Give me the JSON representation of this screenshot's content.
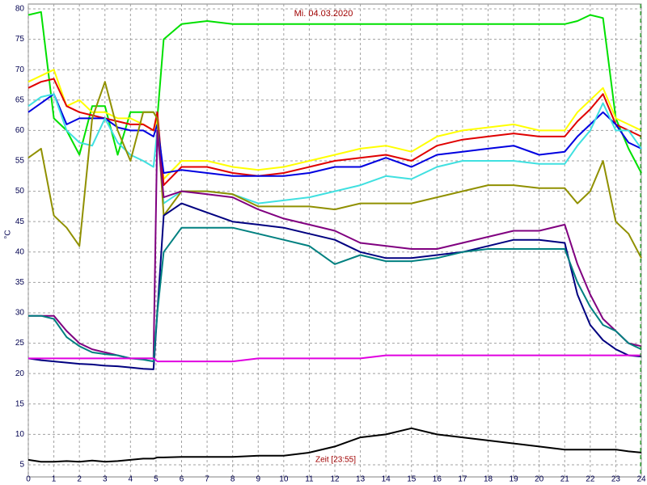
{
  "chart_data": {
    "type": "line",
    "title": "Mi. 04.03.2020",
    "ylabel": "°C",
    "annotation": "Zeit [23:55]",
    "x": [
      0,
      0.5,
      1,
      1.5,
      2,
      2.5,
      3,
      3.5,
      4,
      4.5,
      4.9,
      5.05,
      5.3,
      6,
      7,
      8,
      9,
      10,
      11,
      12,
      13,
      14,
      15,
      16,
      17,
      18,
      19,
      20,
      21,
      21.5,
      22,
      22.5,
      23,
      23.5,
      24
    ],
    "series": [
      {
        "color": "#00e000",
        "values": [
          79,
          79.5,
          62,
          60,
          56,
          64,
          64,
          56,
          63,
          63,
          63,
          62,
          75,
          77.5,
          78,
          77.5,
          77.5,
          77.5,
          77.5,
          77.5,
          77.5,
          77.5,
          77.5,
          77.5,
          77.5,
          77.5,
          77.5,
          77.5,
          77.5,
          78,
          79,
          78.5,
          62,
          57,
          53
        ]
      },
      {
        "color": "#ffff00",
        "values": [
          68,
          69,
          70,
          64,
          65,
          63,
          63,
          62,
          62,
          61,
          60,
          62,
          52,
          55,
          55,
          54,
          53.5,
          54,
          55,
          56,
          57,
          57.5,
          56.5,
          59,
          60,
          60.5,
          61,
          60,
          60,
          63,
          65,
          67,
          62,
          61,
          60
        ]
      },
      {
        "color": "#e00000",
        "values": [
          67,
          68,
          68.5,
          64,
          63,
          62.5,
          62,
          61.5,
          61,
          61,
          60,
          63,
          51,
          54,
          54,
          53,
          52.5,
          53,
          54,
          55,
          55.5,
          56,
          55,
          57.5,
          58.5,
          59,
          59.5,
          59,
          59,
          61.5,
          63.5,
          66,
          61,
          60,
          59
        ]
      },
      {
        "color": "#0000e0",
        "values": [
          63,
          64.5,
          66,
          61,
          62,
          62,
          62,
          60.5,
          60,
          60,
          59,
          61,
          53,
          53.5,
          53,
          52.5,
          52.5,
          52.5,
          53,
          54,
          54,
          55.5,
          54,
          56,
          56.5,
          57,
          57.5,
          56,
          56.5,
          59,
          61,
          63,
          61,
          58,
          57
        ]
      },
      {
        "color": "#40e0e0",
        "values": [
          64,
          65.5,
          66,
          60,
          58,
          57.5,
          62,
          58,
          56,
          55,
          54,
          60,
          48,
          50,
          50,
          49.5,
          48,
          48.5,
          49,
          50,
          51,
          52.5,
          52,
          54,
          55,
          55,
          55,
          54.5,
          54.5,
          57.5,
          60,
          64.5,
          60,
          60,
          57
        ]
      },
      {
        "color": "#909000",
        "values": [
          55.5,
          57,
          46,
          44,
          41,
          62,
          68,
          60,
          55,
          63,
          63,
          62,
          46,
          50,
          50,
          49.5,
          47.5,
          47.5,
          47.5,
          47,
          48,
          48,
          48,
          49,
          50,
          51,
          51,
          50.5,
          50.5,
          48,
          50,
          55,
          45,
          43,
          39
        ]
      },
      {
        "color": "#800080",
        "values": [
          29.5,
          29.5,
          29.5,
          27,
          25,
          24,
          23.5,
          23,
          22.5,
          22.5,
          22.5,
          60,
          49,
          50,
          49.5,
          49,
          47,
          45.5,
          44.5,
          43.5,
          41.5,
          41,
          40.5,
          40.5,
          41.5,
          42.5,
          43.5,
          43.5,
          44.5,
          38,
          33,
          29,
          27,
          25,
          24.5
        ]
      },
      {
        "color": "#000080",
        "values": [
          22.5,
          22.2,
          22,
          21.8,
          21.6,
          21.5,
          21.3,
          21.2,
          21,
          20.8,
          20.7,
          30,
          46,
          48,
          46.5,
          45,
          44.5,
          44,
          43,
          42,
          40,
          39,
          39,
          39.5,
          40,
          41,
          42,
          42,
          41.5,
          33,
          28,
          25.5,
          24,
          23,
          22.8
        ]
      },
      {
        "color": "#008080",
        "values": [
          29.5,
          29.5,
          29,
          26,
          24.5,
          23.5,
          23.2,
          23,
          22.5,
          22.3,
          22,
          30,
          40,
          44,
          44,
          44,
          43,
          42,
          41,
          38,
          39.5,
          38.5,
          38.5,
          39,
          40,
          40.5,
          40.5,
          40.5,
          40.5,
          35,
          31,
          28,
          27,
          25,
          24
        ]
      },
      {
        "color": "#e000e0",
        "values": [
          22.5,
          22.5,
          22.5,
          22.5,
          22.5,
          22.5,
          22.5,
          22.5,
          22.5,
          22.5,
          22.5,
          22,
          22,
          22,
          22,
          22,
          22.5,
          22.5,
          22.5,
          22.5,
          22.5,
          23,
          23,
          23,
          23,
          23,
          23,
          23,
          23,
          23,
          23,
          23,
          23,
          23,
          23
        ]
      },
      {
        "color": "#000000",
        "values": [
          5.8,
          5.5,
          5.5,
          5.6,
          5.5,
          5.7,
          5.5,
          5.6,
          5.8,
          6,
          6,
          6.2,
          6.2,
          6.3,
          6.3,
          6.3,
          6.5,
          6.5,
          7,
          8,
          9.5,
          10,
          11,
          10,
          9.5,
          9,
          8.5,
          8,
          7.5,
          7.5,
          7.5,
          7.5,
          7.5,
          7.2,
          7
        ]
      }
    ],
    "xlim": [
      0,
      24
    ],
    "ylim": [
      3,
      80
    ],
    "xticks": [
      0,
      1,
      2,
      3,
      4,
      5,
      6,
      7,
      8,
      9,
      10,
      11,
      12,
      13,
      14,
      15,
      16,
      17,
      18,
      19,
      20,
      21,
      22,
      23,
      24
    ],
    "yticks": [
      5,
      10,
      15,
      20,
      25,
      30,
      35,
      40,
      45,
      50,
      55,
      60,
      65,
      70,
      75,
      80
    ],
    "grid": true
  }
}
